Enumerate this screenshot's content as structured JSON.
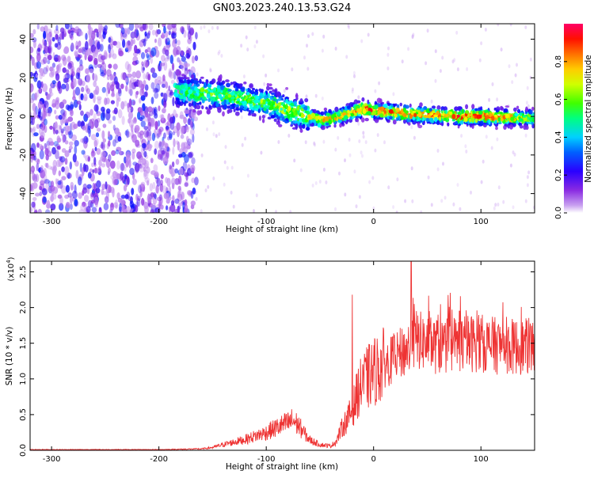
{
  "title": "GN03.2023.240.13.53.G24",
  "colors": {
    "snr_line": "#ee3333",
    "colormap": [
      "#ffffff",
      "#8a2be2",
      "#0000ff",
      "#00ffff",
      "#00ff00",
      "#ffff00",
      "#ff8800",
      "#ff0000",
      "#ff0066"
    ]
  },
  "chart_data": [
    {
      "type": "heatmap",
      "title": "GN03.2023.240.13.53.G24",
      "xlabel": "Height of straight line (km)",
      "ylabel": "Frequency (Hz)",
      "xlim": [
        -320,
        150
      ],
      "ylim": [
        -50,
        48
      ],
      "x_ticks": [
        -300,
        -200,
        -100,
        0,
        100
      ],
      "x_tick_labels": [
        "-300",
        "-200",
        "-100",
        "0",
        "100"
      ],
      "y_ticks": [
        -40,
        -20,
        0,
        20,
        40
      ],
      "y_tick_labels": [
        "-40",
        "-20",
        "0",
        "20",
        "40"
      ],
      "colorbar": {
        "label": "Normalized spectral amplitude",
        "range": [
          0.0,
          1.0
        ],
        "ticks": [
          0.0,
          0.2,
          0.4,
          0.6,
          0.8
        ],
        "tick_labels": [
          "0.0",
          "0.2",
          "0.4",
          "0.6",
          "0.8"
        ]
      },
      "ridge": {
        "x": [
          -180,
          -160,
          -140,
          -120,
          -100,
          -80,
          -60,
          -50,
          -40,
          -20,
          -10,
          0,
          20,
          40,
          60,
          80,
          100,
          120,
          150
        ],
        "frequency": [
          13,
          12,
          11,
          9,
          7,
          3,
          0,
          -2,
          -1,
          2,
          4,
          3,
          2,
          1,
          0.5,
          0,
          0,
          -0.5,
          -1
        ],
        "amplitude": [
          0.4,
          0.45,
          0.45,
          0.45,
          0.45,
          0.5,
          0.55,
          0.6,
          0.6,
          0.65,
          0.8,
          0.75,
          0.7,
          0.7,
          0.7,
          0.75,
          0.75,
          0.65,
          0.5
        ]
      },
      "grid": false,
      "legend": "colorbar-right"
    },
    {
      "type": "line",
      "xlabel": "Height of straight line (km)",
      "ylabel": "SNR (10 * v/v)",
      "y_multiplier": "(x10",
      "y_multiplier_exp": "4",
      "xlim": [
        -320,
        150
      ],
      "ylim": [
        0,
        2.65
      ],
      "x_ticks": [
        -300,
        -200,
        -100,
        0,
        100
      ],
      "x_tick_labels": [
        "-300",
        "-200",
        "-100",
        "0",
        "100"
      ],
      "y_ticks": [
        0.0,
        0.5,
        1.0,
        1.5,
        2.0,
        2.5
      ],
      "y_tick_labels": [
        "0.0",
        "0.5",
        "1.0",
        "1.5",
        "2.0",
        "2.5"
      ],
      "series": [
        {
          "x": [
            -320,
            -200,
            -160,
            -150,
            -140,
            -120,
            -100,
            -90,
            -80,
            -75,
            -70,
            -60,
            -50,
            -40,
            -35,
            -30,
            -20,
            -15,
            -10,
            0,
            10,
            20,
            30,
            40,
            50,
            60,
            80,
            100,
            120,
            140,
            150
          ],
          "y": [
            0.01,
            0.01,
            0.02,
            0.04,
            0.08,
            0.15,
            0.25,
            0.32,
            0.38,
            0.42,
            0.35,
            0.15,
            0.08,
            0.06,
            0.12,
            0.3,
            0.55,
            0.8,
            0.95,
            1.1,
            1.2,
            1.3,
            1.4,
            1.55,
            1.5,
            1.45,
            1.5,
            1.5,
            1.45,
            1.45,
            1.45
          ],
          "spikes": [
            [
              -20,
              2.18
            ],
            [
              -10,
              1.2
            ],
            [
              35,
              2.7
            ],
            [
              38,
              2.05
            ],
            [
              52,
              1.95
            ],
            [
              60,
              1.9
            ],
            [
              80,
              1.95
            ],
            [
              100,
              1.85
            ],
            [
              112,
              1.8
            ],
            [
              120,
              1.7
            ]
          ]
        }
      ],
      "grid": false
    }
  ]
}
